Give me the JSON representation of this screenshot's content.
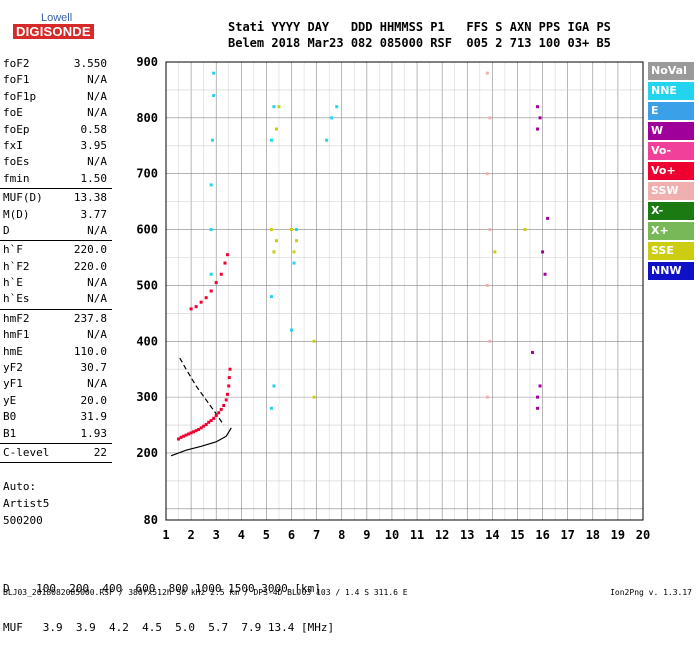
{
  "logo": {
    "line1": "Lowell",
    "line2": "DIGISONDE"
  },
  "header": {
    "line1": "Stati YYYY DAY   DDD HHMMSS P1   FFS S AXN PPS IGA PS",
    "line2": "Belem 2018 Mar23 082 085000 RSF  005 2 713 100 03+ B5"
  },
  "params": [
    {
      "k": "foF2",
      "v": "3.550"
    },
    {
      "k": "foF1",
      "v": "N/A"
    },
    {
      "k": "foF1p",
      "v": "N/A"
    },
    {
      "k": "foE",
      "v": "N/A"
    },
    {
      "k": "foEp",
      "v": "0.58"
    },
    {
      "k": "fxI",
      "v": "3.95"
    },
    {
      "k": "foEs",
      "v": "N/A"
    },
    {
      "k": "fmin",
      "v": "1.50"
    },
    {
      "k": "MUF(D)",
      "v": "13.38"
    },
    {
      "k": "M(D)",
      "v": "3.77"
    },
    {
      "k": "D",
      "v": "N/A"
    },
    {
      "k": "h`F",
      "v": "220.0"
    },
    {
      "k": "h`F2",
      "v": "220.0"
    },
    {
      "k": "h`E",
      "v": "N/A"
    },
    {
      "k": "h`Es",
      "v": "N/A"
    },
    {
      "k": "hmF2",
      "v": "237.8"
    },
    {
      "k": "hmF1",
      "v": "N/A"
    },
    {
      "k": "hmE",
      "v": "110.0"
    },
    {
      "k": "yF2",
      "v": "30.7"
    },
    {
      "k": "yF1",
      "v": "N/A"
    },
    {
      "k": "yE",
      "v": "20.0"
    },
    {
      "k": "B0",
      "v": "31.9"
    },
    {
      "k": "B1",
      "v": "1.93"
    },
    {
      "k": "C-level",
      "v": "22"
    }
  ],
  "auto": {
    "line1": "Auto:",
    "line2": "Artist5",
    "line3": "500200"
  },
  "legend": [
    {
      "label": "NoVal",
      "color": "#9a9a9a"
    },
    {
      "label": "NNE",
      "color": "#22d4ee"
    },
    {
      "label": "E",
      "color": "#3aa0e8"
    },
    {
      "label": "W",
      "color": "#a0009a"
    },
    {
      "label": "Vo-",
      "color": "#f0409a"
    },
    {
      "label": "Vo+",
      "color": "#ee0030"
    },
    {
      "label": "SSW",
      "color": "#f0b0b0"
    },
    {
      "label": "X-",
      "color": "#1c7a12"
    },
    {
      "label": "X+",
      "color": "#78b858"
    },
    {
      "label": "SSE",
      "color": "#cccc10"
    },
    {
      "label": "NNW",
      "color": "#1010c8"
    }
  ],
  "footer_rows": {
    "d_row": "D    100  200  400  600  800 1000 1500 3000 [km]",
    "muf_row": "MUF   3.9  3.9  4.2  4.5  5.0  5.7  7.9 13.4 [MHz]"
  },
  "footer": "BLJ03_2018082085000.RSF / 380fx512h 50 kHz 2.5 km / DPS-4D BLJ03 103 / 1.4 S 311.6 E",
  "version": "Ion2Png v. 1.3.17",
  "chart_data": {
    "type": "scatter",
    "title": "",
    "xlabel": "",
    "ylabel": "",
    "xlim": [
      1,
      20
    ],
    "ylim": [
      80,
      900
    ],
    "x_ticks": [
      1,
      2,
      3,
      4,
      5,
      6,
      7,
      8,
      9,
      10,
      11,
      12,
      13,
      14,
      15,
      16,
      17,
      18,
      19,
      20
    ],
    "y_ticks": [
      80,
      200,
      300,
      400,
      500,
      600,
      700,
      800,
      900
    ],
    "grid": true,
    "legend_position": "right",
    "series": [
      {
        "name": "Vo+",
        "color": "#ee0030",
        "points": [
          [
            1.5,
            225
          ],
          [
            1.6,
            228
          ],
          [
            1.7,
            230
          ],
          [
            1.8,
            232
          ],
          [
            1.9,
            234
          ],
          [
            2.0,
            236
          ],
          [
            2.1,
            238
          ],
          [
            2.2,
            240
          ],
          [
            2.3,
            242
          ],
          [
            2.4,
            245
          ],
          [
            2.5,
            248
          ],
          [
            2.6,
            251
          ],
          [
            2.7,
            255
          ],
          [
            2.8,
            258
          ],
          [
            2.9,
            262
          ],
          [
            3.0,
            267
          ],
          [
            3.1,
            272
          ],
          [
            3.2,
            278
          ],
          [
            3.3,
            285
          ],
          [
            3.4,
            295
          ],
          [
            3.45,
            305
          ],
          [
            3.5,
            320
          ],
          [
            3.52,
            335
          ],
          [
            3.55,
            350
          ],
          [
            2.0,
            458
          ],
          [
            2.2,
            462
          ],
          [
            2.4,
            470
          ],
          [
            2.6,
            478
          ],
          [
            2.8,
            490
          ],
          [
            3.0,
            505
          ],
          [
            3.2,
            520
          ],
          [
            3.35,
            540
          ],
          [
            3.45,
            555
          ]
        ]
      },
      {
        "name": "NNE",
        "color": "#22d4ee",
        "points": [
          [
            2.8,
            520
          ],
          [
            2.8,
            600
          ],
          [
            2.8,
            680
          ],
          [
            2.85,
            760
          ],
          [
            2.9,
            840
          ],
          [
            2.9,
            880
          ],
          [
            5.2,
            480
          ],
          [
            5.3,
            560
          ],
          [
            5.2,
            760
          ],
          [
            5.3,
            820
          ],
          [
            6.1,
            540
          ],
          [
            6.2,
            600
          ],
          [
            7.4,
            760
          ],
          [
            7.6,
            800
          ],
          [
            7.8,
            820
          ],
          [
            5.2,
            280
          ],
          [
            5.3,
            320
          ],
          [
            6.0,
            420
          ]
        ]
      },
      {
        "name": "SSE",
        "color": "#cccc10",
        "points": [
          [
            5.3,
            560
          ],
          [
            5.4,
            580
          ],
          [
            5.2,
            600
          ],
          [
            6.1,
            560
          ],
          [
            6.2,
            580
          ],
          [
            6.0,
            600
          ],
          [
            6.9,
            400
          ],
          [
            6.9,
            300
          ],
          [
            5.4,
            780
          ],
          [
            5.5,
            820
          ],
          [
            14.1,
            560
          ],
          [
            15.3,
            600
          ]
        ]
      },
      {
        "name": "W",
        "color": "#a0009a",
        "points": [
          [
            15.8,
            820
          ],
          [
            15.8,
            780
          ],
          [
            15.9,
            800
          ],
          [
            15.8,
            300
          ],
          [
            15.9,
            320
          ],
          [
            15.8,
            280
          ],
          [
            16.0,
            560
          ],
          [
            16.1,
            520
          ],
          [
            16.2,
            620
          ],
          [
            15.6,
            380
          ]
        ]
      },
      {
        "name": "SSW",
        "color": "#f0b0b0",
        "points": [
          [
            13.8,
            300
          ],
          [
            13.9,
            400
          ],
          [
            13.8,
            500
          ],
          [
            13.9,
            600
          ],
          [
            13.8,
            700
          ],
          [
            13.9,
            800
          ],
          [
            13.8,
            880
          ]
        ]
      }
    ],
    "curves": [
      {
        "name": "profile-dashed",
        "style": "dashed",
        "points": [
          [
            1.55,
            370
          ],
          [
            1.8,
            350
          ],
          [
            2.2,
            320
          ],
          [
            2.6,
            295
          ],
          [
            3.0,
            270
          ],
          [
            3.3,
            250
          ]
        ]
      },
      {
        "name": "profile-solid",
        "style": "solid",
        "points": [
          [
            1.2,
            195
          ],
          [
            1.8,
            205
          ],
          [
            2.4,
            212
          ],
          [
            3.0,
            220
          ],
          [
            3.4,
            230
          ],
          [
            3.6,
            245
          ]
        ]
      }
    ]
  }
}
